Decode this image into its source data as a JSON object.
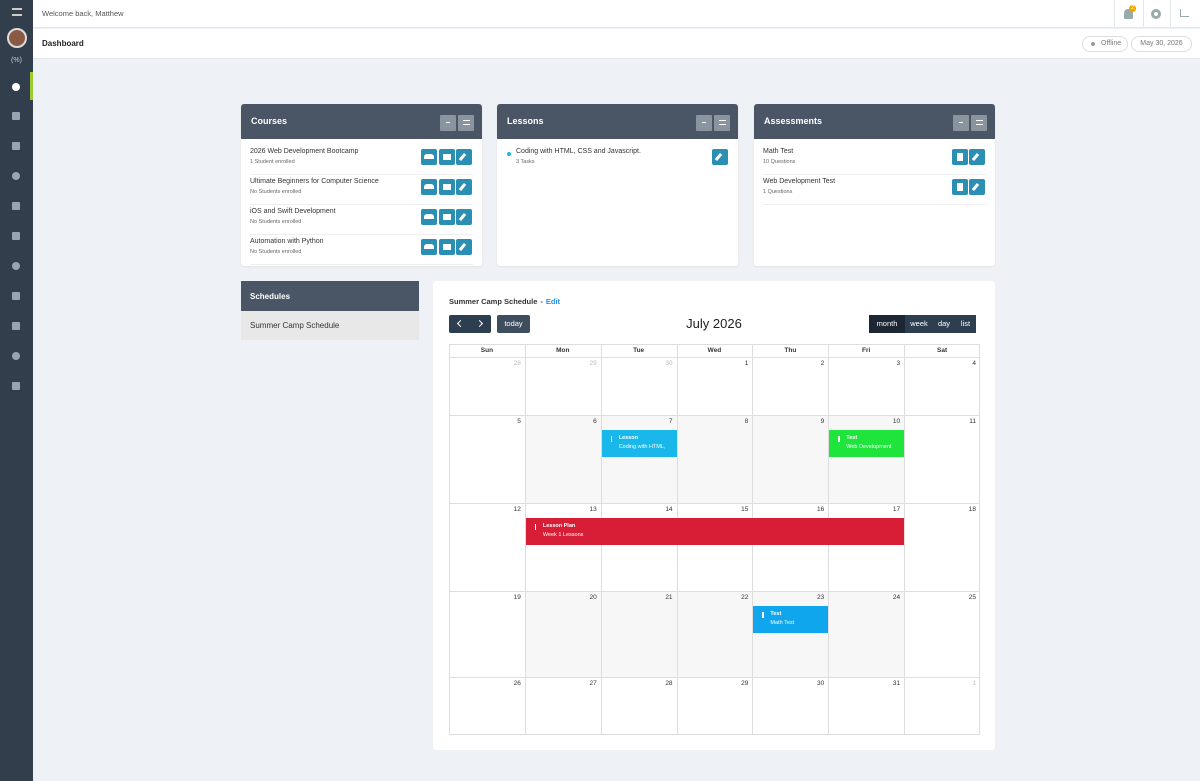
{
  "topbar": {
    "welcome": "Welcome back, Matthew",
    "notification_count": "2"
  },
  "sidebar": {
    "badge": "(%)"
  },
  "page": {
    "title": "Dashboard",
    "status": "Offline",
    "date": "May 30, 2026"
  },
  "courses": {
    "title": "Courses",
    "items": [
      {
        "name": "2026 Web Development Bootcamp",
        "detail": "1 Student enrolled"
      },
      {
        "name": "Ultimate Beginners for Computer Science",
        "detail": "No Students enrolled"
      },
      {
        "name": "iOS and Swift Development",
        "detail": "No Students enrolled"
      },
      {
        "name": "Automation with Python",
        "detail": "No Students enrolled"
      }
    ]
  },
  "lessons": {
    "title": "Lessons",
    "items": [
      {
        "name": "Coding with HTML, CSS and Javascript.",
        "detail": "3 Tasks"
      }
    ]
  },
  "assessments": {
    "title": "Assessments",
    "items": [
      {
        "name": "Math Test",
        "detail": "10 Questions"
      },
      {
        "name": "Web Development Test",
        "detail": "1 Questions"
      }
    ]
  },
  "schedules": {
    "title": "Schedules",
    "items": [
      "Summer Camp Schedule"
    ]
  },
  "calendar": {
    "title": "Summer Camp Schedule",
    "separator": "-",
    "edit": "Edit",
    "today": "today",
    "month_label": "July 2026",
    "views": [
      "month",
      "week",
      "day",
      "list"
    ],
    "weekdays": [
      "Sun",
      "Mon",
      "Tue",
      "Wed",
      "Thu",
      "Fri",
      "Sat"
    ],
    "weeks": [
      [
        28,
        29,
        30,
        1,
        2,
        3,
        4
      ],
      [
        5,
        6,
        7,
        8,
        9,
        10,
        11
      ],
      [
        12,
        13,
        14,
        15,
        16,
        17,
        18
      ],
      [
        19,
        20,
        21,
        22,
        23,
        24,
        25
      ],
      [
        26,
        27,
        28,
        29,
        30,
        31,
        1
      ]
    ],
    "events": [
      {
        "title": "Lesson",
        "detail": "Coding with HTML,",
        "color": "#1ab7ea"
      },
      {
        "title": "Test",
        "detail": "Web Development",
        "color": "#1ee43c"
      },
      {
        "title": "Lesson Plan",
        "detail": "Week 1 Lessons",
        "color": "#d81e36"
      },
      {
        "title": "Test",
        "detail": "Math Test",
        "color": "#0fa6ee"
      }
    ]
  }
}
